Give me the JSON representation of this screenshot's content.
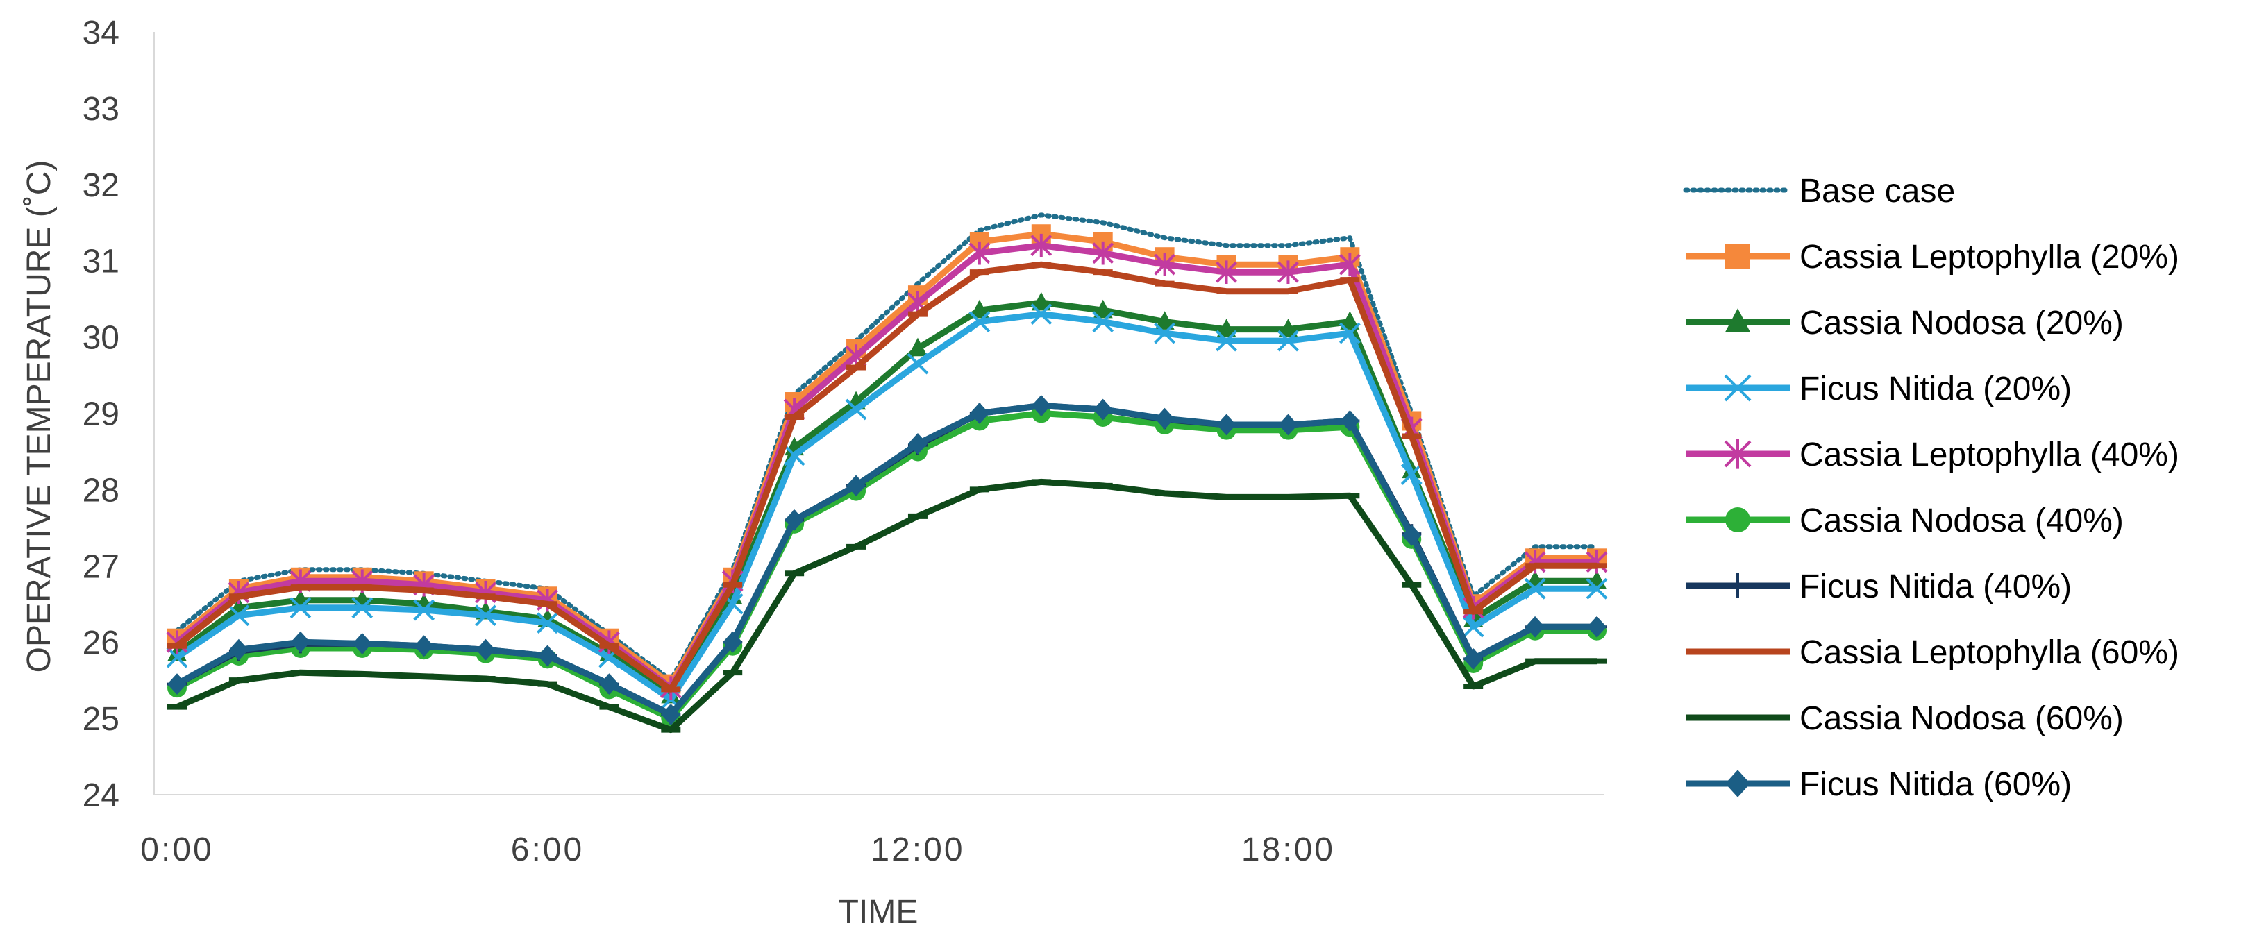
{
  "chart_data": {
    "type": "line",
    "xlabel": "TIME",
    "ylabel": "OPERATIVE TEMPERATURE (˚C)",
    "ylim": [
      24,
      34
    ],
    "y_ticks": [
      "24",
      "25",
      "26",
      "27",
      "28",
      "29",
      "30",
      "31",
      "32",
      "33",
      "34"
    ],
    "x": [
      0,
      1,
      2,
      3,
      4,
      5,
      6,
      7,
      8,
      9,
      10,
      11,
      12,
      13,
      14,
      15,
      16,
      17,
      18,
      19,
      20,
      21,
      22,
      23
    ],
    "x_ticks": [
      {
        "x": 0,
        "label": "0:00"
      },
      {
        "x": 6,
        "label": "6:00"
      },
      {
        "x": 12,
        "label": "12:00"
      },
      {
        "x": 18,
        "label": "18:00"
      }
    ],
    "grid": false,
    "legend_position": "right",
    "series": [
      {
        "name": "Base case",
        "color": "#1F6E8C",
        "marker": "none",
        "dash": "dotted",
        "values": [
          26.15,
          26.8,
          26.95,
          26.95,
          26.9,
          26.8,
          26.7,
          26.1,
          25.5,
          26.95,
          29.25,
          29.95,
          30.7,
          31.4,
          31.6,
          31.5,
          31.3,
          31.2,
          31.2,
          31.3,
          29.0,
          26.6,
          27.25,
          27.25
        ]
      },
      {
        "name": "Cassia Leptophylla (20%)",
        "color": "#F5883B",
        "marker": "square",
        "values": [
          26.05,
          26.7,
          26.85,
          26.85,
          26.8,
          26.7,
          26.6,
          26.05,
          25.45,
          26.85,
          29.15,
          29.85,
          30.55,
          31.25,
          31.35,
          31.25,
          31.05,
          30.95,
          30.95,
          31.05,
          28.9,
          26.5,
          27.1,
          27.1
        ]
      },
      {
        "name": "Cassia Nodosa (20%)",
        "color": "#1E7A2E",
        "marker": "triangle",
        "values": [
          25.85,
          26.45,
          26.55,
          26.55,
          26.5,
          26.4,
          26.3,
          25.85,
          25.3,
          26.6,
          28.55,
          29.15,
          29.85,
          30.35,
          30.45,
          30.35,
          30.2,
          30.1,
          30.1,
          30.2,
          28.25,
          26.3,
          26.8,
          26.8
        ]
      },
      {
        "name": "Ficus Nitida (20%)",
        "color": "#2AA6DE",
        "marker": "x",
        "values": [
          25.8,
          26.35,
          26.45,
          26.45,
          26.42,
          26.35,
          26.25,
          25.8,
          25.25,
          26.5,
          28.45,
          29.05,
          29.65,
          30.2,
          30.3,
          30.2,
          30.05,
          29.95,
          29.95,
          30.05,
          28.2,
          26.2,
          26.7,
          26.7
        ]
      },
      {
        "name": "Cassia Leptophylla (40%)",
        "color": "#C23BA0",
        "marker": "star",
        "values": [
          26.0,
          26.65,
          26.8,
          26.8,
          26.75,
          26.65,
          26.55,
          26.0,
          25.4,
          26.8,
          29.05,
          29.75,
          30.45,
          31.1,
          31.2,
          31.1,
          30.95,
          30.85,
          30.85,
          30.95,
          28.8,
          26.45,
          27.05,
          27.05
        ]
      },
      {
        "name": "Cassia Nodosa (40%)",
        "color": "#2DB037",
        "marker": "circle",
        "values": [
          25.4,
          25.82,
          25.92,
          25.92,
          25.9,
          25.85,
          25.78,
          25.38,
          25.0,
          25.95,
          27.55,
          27.98,
          28.5,
          28.9,
          29.0,
          28.95,
          28.85,
          28.78,
          28.78,
          28.82,
          27.35,
          25.72,
          26.15,
          26.15
        ]
      },
      {
        "name": "Ficus Nitida (40%)",
        "color": "#17375E",
        "marker": "plus",
        "values": [
          25.45,
          25.88,
          25.98,
          25.98,
          25.95,
          25.9,
          25.82,
          25.45,
          25.05,
          26.0,
          27.6,
          28.05,
          28.58,
          29.0,
          29.1,
          29.05,
          28.92,
          28.85,
          28.85,
          28.9,
          27.42,
          25.78,
          26.2,
          26.2
        ]
      },
      {
        "name": "Cassia Leptophylla (60%)",
        "color": "#B8441E",
        "marker": "dash",
        "values": [
          25.95,
          26.6,
          26.72,
          26.72,
          26.68,
          26.6,
          26.5,
          25.95,
          25.38,
          26.75,
          28.95,
          29.6,
          30.3,
          30.85,
          30.95,
          30.85,
          30.7,
          30.6,
          30.6,
          30.75,
          28.7,
          26.4,
          27.0,
          27.0
        ]
      },
      {
        "name": "Cassia Nodosa (60%)",
        "color": "#0F4A1A",
        "marker": "dash",
        "values": [
          25.15,
          25.5,
          25.6,
          25.58,
          25.55,
          25.52,
          25.45,
          25.15,
          24.85,
          25.6,
          26.9,
          27.25,
          27.65,
          28.0,
          28.1,
          28.05,
          27.95,
          27.9,
          27.9,
          27.92,
          26.75,
          25.42,
          25.75,
          25.75
        ]
      },
      {
        "name": "Ficus Nitida (60%)",
        "color": "#1B5E85",
        "marker": "diamond",
        "values": [
          25.45,
          25.9,
          26.0,
          25.98,
          25.95,
          25.9,
          25.82,
          25.45,
          25.05,
          26.0,
          27.6,
          28.05,
          28.6,
          29.0,
          29.1,
          29.05,
          28.93,
          28.85,
          28.85,
          28.9,
          27.4,
          25.78,
          26.2,
          26.2
        ]
      }
    ]
  }
}
